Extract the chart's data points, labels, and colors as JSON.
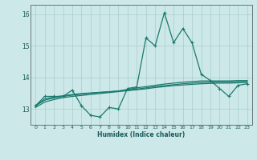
{
  "x": [
    0,
    1,
    2,
    3,
    4,
    5,
    6,
    7,
    8,
    9,
    10,
    11,
    12,
    13,
    14,
    15,
    16,
    17,
    18,
    19,
    20,
    21,
    22,
    23
  ],
  "y_main": [
    13.1,
    13.4,
    13.4,
    13.4,
    13.6,
    13.1,
    12.8,
    12.75,
    13.05,
    13.0,
    13.65,
    13.7,
    15.25,
    15.0,
    16.05,
    15.1,
    15.55,
    15.1,
    14.1,
    13.9,
    13.65,
    13.4,
    13.75,
    13.8
  ],
  "y_smooth1": [
    13.1,
    13.32,
    13.38,
    13.42,
    13.46,
    13.49,
    13.51,
    13.53,
    13.55,
    13.57,
    13.62,
    13.67,
    13.71,
    13.75,
    13.79,
    13.82,
    13.85,
    13.87,
    13.89,
    13.89,
    13.89,
    13.89,
    13.9,
    13.9
  ],
  "y_smooth2": [
    13.1,
    13.28,
    13.35,
    13.4,
    13.44,
    13.47,
    13.5,
    13.52,
    13.54,
    13.57,
    13.6,
    13.63,
    13.67,
    13.71,
    13.74,
    13.77,
    13.8,
    13.82,
    13.84,
    13.85,
    13.86,
    13.86,
    13.87,
    13.88
  ],
  "y_smooth3": [
    13.05,
    13.22,
    13.3,
    13.36,
    13.4,
    13.43,
    13.46,
    13.49,
    13.52,
    13.55,
    13.58,
    13.61,
    13.64,
    13.68,
    13.71,
    13.74,
    13.76,
    13.78,
    13.8,
    13.81,
    13.82,
    13.82,
    13.83,
    13.84
  ],
  "line_color": "#1a7a6e",
  "bg_color": "#cde8e8",
  "grid_color": "#aacccc",
  "xlabel": "Humidex (Indice chaleur)",
  "ylim": [
    12.5,
    16.3
  ],
  "xlim": [
    -0.5,
    23.5
  ],
  "yticks": [
    13,
    14,
    15,
    16
  ],
  "xtick_fontsize": 4.5,
  "ytick_fontsize": 5.5,
  "xlabel_fontsize": 5.5
}
